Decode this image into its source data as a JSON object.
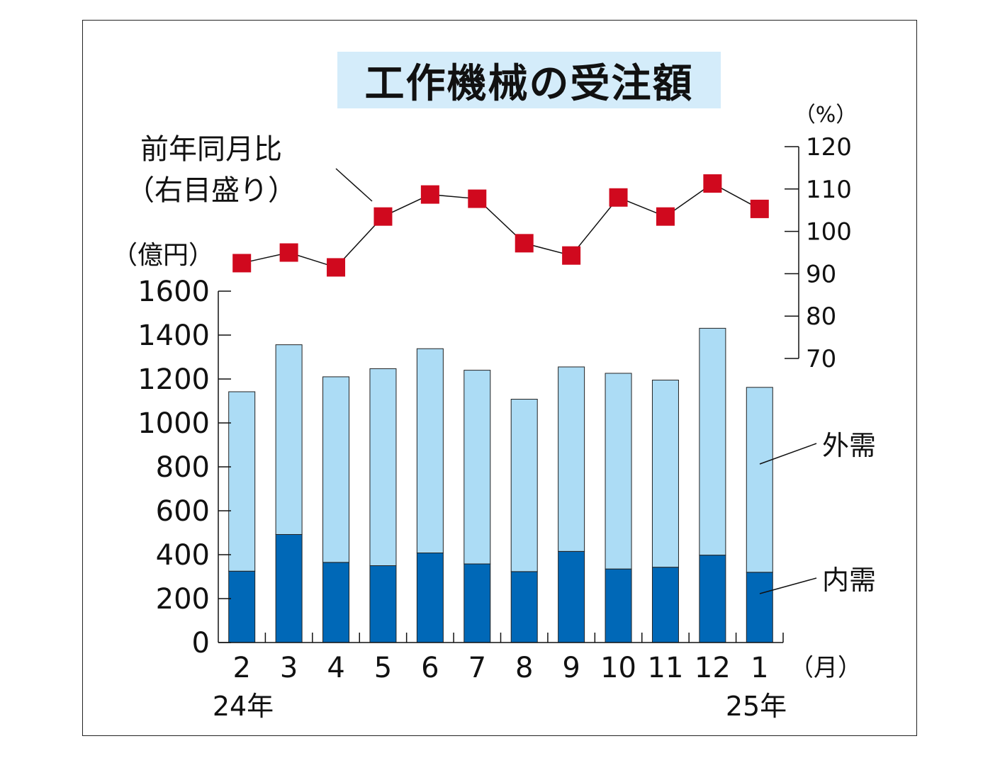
{
  "chart_data": {
    "type": "bar",
    "title": "工作機械の受注額",
    "categories": [
      "2",
      "3",
      "4",
      "5",
      "6",
      "7",
      "8",
      "9",
      "10",
      "11",
      "12",
      "1"
    ],
    "year_labels": [
      "24年",
      "25年"
    ],
    "x_unit": "（月）",
    "left_axis": {
      "unit": "（億円）",
      "ylim": [
        0,
        1600
      ],
      "ticks": [
        "0",
        "200",
        "400",
        "600",
        "800",
        "1000",
        "1200",
        "1400",
        "1600"
      ]
    },
    "right_axis": {
      "unit": "（%）",
      "ylim": [
        70,
        120
      ],
      "ticks": [
        "70",
        "80",
        "90",
        "100",
        "110",
        "120"
      ]
    },
    "series": [
      {
        "name": "内需",
        "type": "bar",
        "stacked": true,
        "color": "#0068b7",
        "values": [
          325,
          492,
          365,
          350,
          408,
          358,
          323,
          415,
          335,
          343,
          398,
          320
        ]
      },
      {
        "name": "外需",
        "type": "bar",
        "stacked": true,
        "color": "#acdcf5",
        "values": [
          817,
          864,
          845,
          897,
          930,
          882,
          785,
          840,
          891,
          852,
          1033,
          842
        ]
      },
      {
        "name": "前年同月比（右目盛り）",
        "type": "line",
        "axis": "right",
        "color": "#d0091e",
        "values": [
          92.5,
          95.0,
          91.5,
          103.5,
          108.7,
          107.7,
          97.2,
          94.3,
          108.0,
          103.5,
          111.3,
          105.3
        ]
      }
    ],
    "line_label_lines": [
      "前年同月比",
      "（右目盛り）"
    ]
  }
}
